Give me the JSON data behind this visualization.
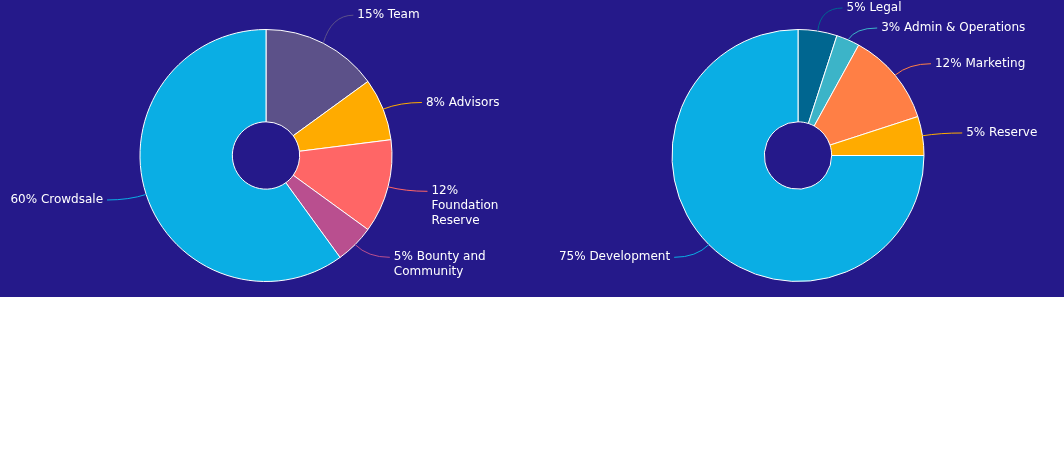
{
  "chart_data": [
    {
      "type": "donut",
      "categories": [
        "Team",
        "Advisors",
        "Foundation Reserve",
        "Bounty and Community",
        "Crowdsale"
      ],
      "values": [
        15,
        8,
        12,
        5,
        60
      ],
      "value_labels": [
        "15%",
        "8%",
        "12%",
        "5%",
        "60%"
      ],
      "colors": [
        "#5c5189",
        "#ffab00",
        "#ff6666",
        "#b94f8f",
        "#0aaee4"
      ],
      "legend": false
    },
    {
      "type": "donut",
      "categories": [
        "Legal",
        "Admin & Operations",
        "Marketing",
        "Reserve",
        "Development"
      ],
      "values": [
        5,
        3,
        12,
        5,
        75
      ],
      "value_labels": [
        "5%",
        "3%",
        "12%",
        "5%",
        "75%"
      ],
      "colors": [
        "#006690",
        "#3cb4c8",
        "#ff7f45",
        "#ffab00",
        "#0aaee4"
      ],
      "legend": false
    }
  ]
}
